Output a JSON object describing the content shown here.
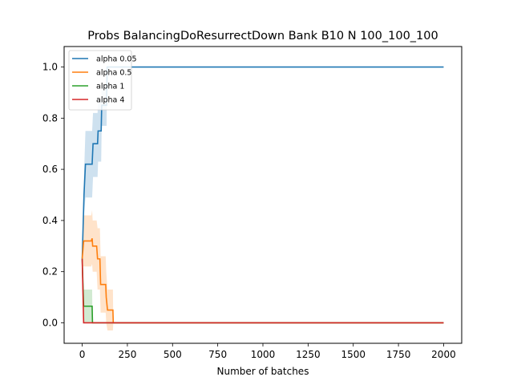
{
  "chart_data": {
    "type": "line",
    "title": "Probs BalancingDoResurrectDown Bank B10 N 100_100_100",
    "xlabel": "Number of batches",
    "ylabel": "",
    "xlim": [
      -100,
      2100
    ],
    "ylim": [
      -0.08,
      1.08
    ],
    "x_ticks": [
      0,
      250,
      500,
      750,
      1000,
      1250,
      1500,
      1750,
      2000
    ],
    "y_ticks": [
      0.0,
      0.2,
      0.4,
      0.6,
      0.8,
      1.0
    ],
    "grid": false,
    "legend_position": "top-left",
    "series": [
      {
        "name": "alpha 0.05",
        "color": "#1f77b4",
        "points": [
          [
            0,
            0.25
          ],
          [
            10,
            0.5
          ],
          [
            18,
            0.62
          ],
          [
            55,
            0.62
          ],
          [
            60,
            0.7
          ],
          [
            85,
            0.7
          ],
          [
            88,
            0.75
          ],
          [
            105,
            0.75
          ],
          [
            108,
            0.85
          ],
          [
            135,
            0.85
          ],
          [
            138,
            1.0
          ],
          [
            2000,
            1.0
          ]
        ],
        "band": [
          [
            0,
            0.2,
            0.3
          ],
          [
            10,
            0.42,
            0.58
          ],
          [
            18,
            0.49,
            0.75
          ],
          [
            55,
            0.49,
            0.75
          ],
          [
            60,
            0.57,
            0.82
          ],
          [
            85,
            0.57,
            0.82
          ],
          [
            88,
            0.63,
            0.87
          ],
          [
            105,
            0.63,
            0.87
          ],
          [
            108,
            0.77,
            0.93
          ],
          [
            135,
            0.77,
            0.93
          ],
          [
            138,
            1.0,
            1.0
          ],
          [
            2000,
            1.0,
            1.0
          ]
        ]
      },
      {
        "name": "alpha 0.5",
        "color": "#ff7f0e",
        "points": [
          [
            0,
            0.25
          ],
          [
            8,
            0.32
          ],
          [
            50,
            0.32
          ],
          [
            55,
            0.33
          ],
          [
            58,
            0.3
          ],
          [
            80,
            0.3
          ],
          [
            85,
            0.25
          ],
          [
            98,
            0.25
          ],
          [
            102,
            0.15
          ],
          [
            130,
            0.15
          ],
          [
            133,
            0.1
          ],
          [
            140,
            0.05
          ],
          [
            170,
            0.05
          ],
          [
            172,
            0.0
          ],
          [
            2000,
            0.0
          ]
        ],
        "band": [
          [
            0,
            0.22,
            0.28
          ],
          [
            8,
            0.22,
            0.42
          ],
          [
            50,
            0.22,
            0.42
          ],
          [
            55,
            0.23,
            0.44
          ],
          [
            58,
            0.2,
            0.4
          ],
          [
            80,
            0.2,
            0.4
          ],
          [
            85,
            0.13,
            0.37
          ],
          [
            98,
            0.13,
            0.37
          ],
          [
            102,
            0.04,
            0.26
          ],
          [
            130,
            0.04,
            0.26
          ],
          [
            133,
            0.0,
            0.2
          ],
          [
            140,
            -0.03,
            0.13
          ],
          [
            170,
            -0.03,
            0.13
          ],
          [
            172,
            0.0,
            0.0
          ],
          [
            2000,
            0.0,
            0.0
          ]
        ]
      },
      {
        "name": "alpha 1",
        "color": "#2ca02c",
        "points": [
          [
            0,
            0.25
          ],
          [
            8,
            0.065
          ],
          [
            55,
            0.065
          ],
          [
            57,
            0.0
          ],
          [
            2000,
            0.0
          ]
        ],
        "band": [
          [
            0,
            0.2,
            0.3
          ],
          [
            8,
            0.0,
            0.13
          ],
          [
            55,
            0.0,
            0.13
          ],
          [
            57,
            0.0,
            0.0
          ],
          [
            2000,
            0.0,
            0.0
          ]
        ]
      },
      {
        "name": "alpha 4",
        "color": "#d62728",
        "points": [
          [
            0,
            0.25
          ],
          [
            8,
            0.0
          ],
          [
            2000,
            0.0
          ]
        ],
        "band": []
      }
    ]
  }
}
